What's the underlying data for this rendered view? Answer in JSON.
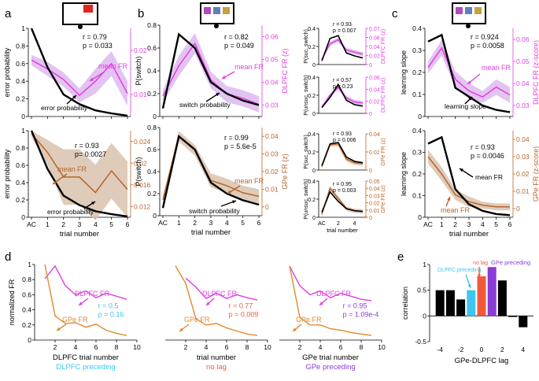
{
  "colors": {
    "black": "#000000",
    "magenta": "#e23fe2",
    "magenta_fill": "#ddb8ee",
    "brown": "#b7652d",
    "brown_fill": "#d9c2ad",
    "orange": "#e08a2c",
    "cyan": "#3ec5f0",
    "red": "#f05a3a",
    "purple": "#8a3bd8"
  },
  "panel_letters": [
    "a",
    "b",
    "c",
    "d",
    "e"
  ],
  "chart_data": [
    {
      "id": "a_top",
      "type": "line",
      "xlabel": "",
      "ylabel": "error probability",
      "y2label": "",
      "categories": [
        "AC",
        "1",
        "2",
        "3",
        "4",
        "5",
        "6"
      ],
      "ylim": [
        0,
        1
      ],
      "y2lim": [
        0.005,
        0.03
      ],
      "yticks": [
        "0",
        "0.2",
        "0.4",
        "0.6",
        "0.8",
        "1"
      ],
      "y2ticks": [
        "0.01",
        "0.02"
      ],
      "black": [
        1.0,
        0.56,
        0.25,
        0.14,
        0.07,
        0.035,
        0.01
      ],
      "color": [
        0.021,
        0.0185,
        0.0155,
        0.011,
        0.015,
        0.02,
        0.0115
      ],
      "band": [
        0.0015,
        0.002,
        0.002,
        0.002,
        0.0035,
        0.0035,
        0.0035
      ],
      "stat1": "r = 0.79",
      "stat2": "p = 0.033",
      "label_color": "mean FR",
      "label_black": "error probability"
    },
    {
      "id": "a_bot",
      "type": "line",
      "xlabel": "trial number",
      "ylabel": "error probability",
      "y2label": "",
      "categories": [
        "AC",
        "1",
        "2",
        "3",
        "4",
        "5",
        "6"
      ],
      "ylim": [
        0,
        1
      ],
      "y2lim": [
        0.011,
        0.025
      ],
      "yticks": [
        "0",
        "0.2",
        "0.4",
        "0.6",
        "0.8",
        "1"
      ],
      "y2ticks": [
        "0.012",
        "0.016",
        "0.02",
        "0.024"
      ],
      "black": [
        1.0,
        0.56,
        0.25,
        0.14,
        0.07,
        0.035,
        0.01
      ],
      "color": [
        0.0245,
        0.0215,
        0.0175,
        0.0175,
        0.015,
        0.0185,
        0.0155
      ],
      "band": [
        0.0005,
        0.002,
        0.0045,
        0.0045,
        0.0045,
        0.0045,
        0.0045
      ],
      "stat1": "r = 0.93",
      "stat2": "p= 0.0027",
      "label_color": "mean FR",
      "label_black": "error probability"
    },
    {
      "id": "b_top",
      "type": "line",
      "xlabel": "",
      "ylabel": "P(switch)",
      "y2label": "DLPFC FR (z)",
      "categories": [
        "AC",
        "1",
        "2",
        "3",
        "4",
        "5",
        "6"
      ],
      "ylim": [
        0,
        0.8
      ],
      "y2lim": [
        0.02,
        0.065
      ],
      "yticks": [
        "0",
        "0.2",
        "0.4",
        "0.6",
        "0.8"
      ],
      "y2ticks": [
        "0.03",
        "0.04",
        "0.05",
        "0.06"
      ],
      "black": [
        0.07,
        0.72,
        0.6,
        0.3,
        0.2,
        0.14,
        0.1
      ],
      "color": [
        0.03,
        0.045,
        0.056,
        0.038,
        0.031,
        0.029,
        0.026
      ],
      "band": [
        0.003,
        0.005,
        0.005,
        0.004,
        0.004,
        0.004,
        0.004
      ],
      "stat1": "r = 0.82",
      "stat2": "p = 0.049",
      "label_color": "mean FR",
      "label_black": "switch probability"
    },
    {
      "id": "b_bot",
      "type": "line",
      "xlabel": "trial number",
      "ylabel": "P(switch)",
      "y2label": "GPe FR (z)",
      "categories": [
        "AC",
        "1",
        "2",
        "3",
        "4",
        "5",
        "6"
      ],
      "ylim": [
        0,
        0.8
      ],
      "y2lim": [
        -0.005,
        0.045
      ],
      "yticks": [
        "0",
        "0.2",
        "0.4",
        "0.6",
        "0.8"
      ],
      "y2ticks": [
        "0",
        "0.01",
        "0.02",
        "0.03",
        "0.04"
      ],
      "black": [
        0.07,
        0.72,
        0.6,
        0.3,
        0.2,
        0.14,
        0.1
      ],
      "color": [
        0.004,
        0.04,
        0.032,
        0.015,
        0.012,
        0.008,
        0.006
      ],
      "band": [
        0.002,
        0.003,
        0.003,
        0.004,
        0.004,
        0.004,
        0.004
      ],
      "stat1": "r = 0.99",
      "stat2": "p = 5.6e-5",
      "label_color": "mean FR",
      "label_black": "switch probability"
    },
    {
      "id": "c_top",
      "type": "line",
      "xlabel": "",
      "ylabel": "learning slope",
      "y2label": "DLPFC FR (z-score)",
      "categories": [
        "AC",
        "1",
        "2",
        "3",
        "4",
        "5",
        "6"
      ],
      "ylim": [
        0,
        0.4
      ],
      "y2lim": [
        0.02,
        0.065
      ],
      "yticks": [
        "0",
        "0.1",
        "0.2",
        "0.3",
        "0.4"
      ],
      "y2ticks": [
        "0.03",
        "0.04",
        "0.05",
        "0.06"
      ],
      "black": [
        0.34,
        0.37,
        0.13,
        0.09,
        0.05,
        0.03,
        0.02
      ],
      "color": [
        0.045,
        0.055,
        0.039,
        0.033,
        0.03,
        0.035,
        0.031
      ],
      "band": [
        0.003,
        0.004,
        0.004,
        0.004,
        0.003,
        0.004,
        0.004
      ],
      "stat1": "r = 0.924",
      "stat2": "p = 0.0058",
      "label_color": "mean FR",
      "label_black": "learning slope"
    },
    {
      "id": "c_bot",
      "type": "line",
      "xlabel": "trial number",
      "ylabel": "learning slope",
      "y2label": "GPe FR (z-score)",
      "categories": [
        "AC",
        "1",
        "2",
        "3",
        "4",
        "5",
        "6"
      ],
      "ylim": [
        0,
        0.4
      ],
      "y2lim": [
        -0.005,
        0.045
      ],
      "yticks": [
        "0",
        "0.1",
        "0.2",
        "0.3",
        "0.4"
      ],
      "y2ticks": [
        "0",
        "0.01",
        "0.02",
        "0.03",
        "0.04"
      ],
      "black": [
        0.34,
        0.37,
        0.13,
        0.06,
        0.03,
        0.015,
        0.01
      ],
      "color": [
        0.03,
        0.02,
        0.008,
        0.004,
        0.002,
        0.001,
        0.001
      ],
      "band": [
        0.004,
        0.004,
        0.003,
        0.003,
        0.002,
        0.002,
        0.002
      ],
      "stat1": "r = 0.93",
      "stat2": "p = 0.0046",
      "label_color": "mean FR",
      "label_black": "learning slope"
    },
    {
      "id": "b_mini1",
      "type": "line",
      "ylabel": "P(suc. switch)",
      "y2label": "DLPFC FR (z)",
      "x": [
        0,
        1,
        2,
        3,
        4,
        5
      ],
      "ylim": [
        0,
        0.5
      ],
      "y2lim": [
        0,
        0.07
      ],
      "yticks": [
        "0",
        "0.2",
        "0.4"
      ],
      "y2ticks": [
        "0",
        "0.02",
        "0.04",
        "0.06",
        "0.07"
      ],
      "black": [
        0.05,
        0.36,
        0.4,
        0.16,
        0.12,
        0.09
      ],
      "color": [
        0.01,
        0.04,
        0.048,
        0.028,
        0.024,
        0.02
      ],
      "band": [
        0.003,
        0.004,
        0.004,
        0.004,
        0.004,
        0.004
      ],
      "stat1": "r = 0.93",
      "stat2": "p = 0.007"
    },
    {
      "id": "b_mini2",
      "type": "line",
      "ylabel": "P(unsuc. switch)",
      "y2label": "DLPFC FR (z)",
      "x": [
        0,
        1,
        2,
        3,
        4,
        5
      ],
      "ylim": [
        0,
        0.5
      ],
      "y2lim": [
        0,
        0.07
      ],
      "yticks": [
        "0",
        "0.2",
        "0.4"
      ],
      "y2ticks": [
        "0",
        "0.02",
        "0.04",
        "0.06"
      ],
      "black": [
        0.08,
        0.22,
        0.4,
        0.18,
        0.12,
        0.1
      ],
      "color": [
        0.012,
        0.035,
        0.05,
        0.03,
        0.022,
        0.02
      ],
      "band": [
        0.003,
        0.004,
        0.004,
        0.004,
        0.004,
        0.004
      ],
      "stat1": "r = 0.57",
      "stat2": "p = 0.23"
    },
    {
      "id": "b_mini3",
      "type": "line",
      "ylabel": "P(suc. switch)",
      "y2label": "GPe FR (z)",
      "x": [
        0,
        1,
        2,
        3,
        4,
        5
      ],
      "ylim": [
        0,
        0.5
      ],
      "y2lim": [
        0,
        0.05
      ],
      "yticks": [
        "0",
        "0.2",
        "0.4"
      ],
      "y2ticks": [
        "0",
        "0.02",
        "0.04"
      ],
      "black": [
        0.06,
        0.36,
        0.38,
        0.18,
        0.12,
        0.1
      ],
      "color": [
        0.005,
        0.035,
        0.036,
        0.015,
        0.01,
        0.009
      ],
      "band": [
        0.003,
        0.003,
        0.003,
        0.003,
        0.003,
        0.003
      ],
      "stat1": "r = 0.93",
      "stat2": "p = 0.006"
    },
    {
      "id": "b_mini4",
      "type": "line",
      "ylabel": "P(unsuc. switch)",
      "y2label": "GPe FR (z)",
      "xlabel": "trial number",
      "x": [
        0,
        1,
        2,
        3,
        4,
        5
      ],
      "xticks": [
        "AC",
        "2",
        "4"
      ],
      "ylim": [
        0,
        0.5
      ],
      "y2lim": [
        0,
        0.05
      ],
      "yticks": [
        "0",
        "0.2",
        "0.4"
      ],
      "y2ticks": [
        "0",
        "0.01",
        "0.02",
        "0.03",
        "0.04",
        "0.05"
      ],
      "black": [
        0.07,
        0.35,
        0.22,
        0.12,
        0.09,
        0.08
      ],
      "color": [
        0.004,
        0.04,
        0.026,
        0.012,
        0.009,
        0.008
      ],
      "band": [
        0.003,
        0.003,
        0.003,
        0.003,
        0.003,
        0.003
      ],
      "stat1": "r = 0.95",
      "stat2": "p = 0.003"
    },
    {
      "id": "d1",
      "type": "line",
      "xlabel": "DLPFC trial number",
      "sublabel": "DLPFC preceding",
      "sublabel_color": "#3ec5f0",
      "ylabel": "normalized FR",
      "xlim": [
        0,
        10
      ],
      "xticks": [
        "2",
        "4",
        "6",
        "8",
        "10"
      ],
      "ylim": [
        0,
        1
      ],
      "yticks": [
        "0",
        "0.2",
        "0.4",
        "0.6",
        "0.8",
        "1"
      ],
      "series": [
        {
          "name": "DLPFC FR",
          "x": [
            1,
            2,
            3,
            4,
            5,
            6,
            7,
            8,
            9
          ],
          "values": [
            0.81,
            0.98,
            0.72,
            0.6,
            0.65,
            0.56,
            0.62,
            0.58,
            0.54
          ]
        },
        {
          "name": "GPe FR",
          "x": [
            1,
            2,
            3,
            4,
            5,
            6,
            7,
            8,
            9
          ],
          "values": [
            1.0,
            0.32,
            0.22,
            0.23,
            0.17,
            0.21,
            0.13,
            0.09,
            0.06
          ]
        }
      ],
      "stat1": "r = 0.5",
      "stat2": "p = 0.16",
      "stat_color": "#3ec5f0"
    },
    {
      "id": "d2",
      "type": "line",
      "xlabel": "trial number",
      "sublabel": "no lag",
      "sublabel_color": "#f05a3a",
      "xlim": [
        0,
        10
      ],
      "xticks": [
        "2",
        "4",
        "6",
        "8",
        "10"
      ],
      "ylim": [
        0,
        1
      ],
      "series": [
        {
          "name": "DLPFC FR",
          "x": [
            2,
            3,
            4,
            5,
            6,
            7,
            8,
            9
          ],
          "values": [
            0.82,
            0.7,
            0.55,
            0.62,
            0.55,
            0.6,
            0.56,
            0.53
          ]
        },
        {
          "name": "GPe FR",
          "x": [
            1,
            2,
            3,
            4,
            5,
            6,
            7,
            8,
            9
          ],
          "values": [
            0.98,
            0.75,
            0.28,
            0.2,
            0.22,
            0.16,
            0.12,
            0.08,
            0.06
          ]
        }
      ],
      "stat1": "r = 0.77",
      "stat2": "p = 0.009",
      "stat_color": "#f05a3a"
    },
    {
      "id": "d3",
      "type": "line",
      "xlabel": "GPe trial number",
      "sublabel": "GPe preceding",
      "sublabel_color": "#8a3bd8",
      "xlim": [
        0,
        10
      ],
      "xticks": [
        "2",
        "4",
        "6",
        "8",
        "10"
      ],
      "ylim": [
        0,
        1
      ],
      "series": [
        {
          "name": "DLPFC FR",
          "x": [
            1,
            2,
            3,
            4,
            5,
            6,
            7,
            8,
            9
          ],
          "values": [
            0.98,
            0.72,
            0.6,
            0.65,
            0.56,
            0.62,
            0.58,
            0.54,
            0.52
          ]
        },
        {
          "name": "GPe FR",
          "x": [
            1,
            2,
            3,
            4,
            5,
            6,
            7,
            8,
            9
          ],
          "values": [
            0.98,
            0.3,
            0.2,
            0.2,
            0.15,
            0.13,
            0.1,
            0.08,
            0.06
          ]
        }
      ],
      "stat1": "r = 0.95",
      "stat2": "p = 1.09e-4",
      "stat_color": "#8a3bd8"
    },
    {
      "id": "e",
      "type": "bar",
      "xlabel": "GPe-DLPFC lag",
      "ylabel": "correlation",
      "x": [
        -4,
        -3,
        -2,
        -1,
        0,
        1,
        2,
        3,
        4
      ],
      "values": [
        0.5,
        0.5,
        0.32,
        0.5,
        0.77,
        0.95,
        0.69,
        -0.02,
        -0.22
      ],
      "bar_colors": [
        "#000000",
        "#000000",
        "#000000",
        "#3ec5f0",
        "#f05a3a",
        "#8a3bd8",
        "#000000",
        "#000000",
        "#000000"
      ],
      "xlim": [
        -5,
        5
      ],
      "xticks": [
        "-4",
        "-2",
        "0",
        "2",
        "4"
      ],
      "ylim": [
        -0.5,
        1
      ],
      "yticks": [
        "-0.5",
        "0",
        "0.5",
        "1"
      ],
      "annotations": [
        "DLPFC preceding",
        "no lag",
        "GPe preceding"
      ]
    }
  ]
}
